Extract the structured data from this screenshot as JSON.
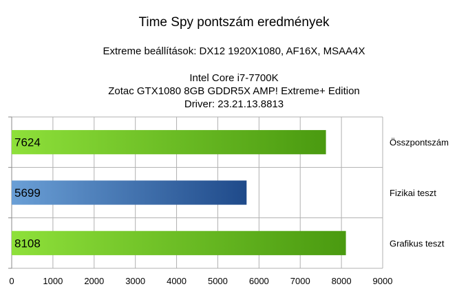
{
  "chart_data": {
    "type": "bar",
    "orientation": "horizontal",
    "title": "Time Spy pontszám eredmények",
    "subtitle": "Extreme beállítások: DX12 1920X1080, AF16X, MSAA4X",
    "subtitle_lines": [
      "Intel Core i7-7700K",
      "Zotac GTX1080 8GB GDDR5X AMP! Extreme+ Edition",
      "Driver: 23.21.13.8813"
    ],
    "categories": [
      "Összpontszám",
      "Fizikai teszt",
      "Grafikus teszt"
    ],
    "values": [
      7624,
      5699,
      8108
    ],
    "value_labels": [
      "7624",
      "5699",
      "8108"
    ],
    "xlim": [
      0,
      9000
    ],
    "x_ticks": [
      "0",
      "1000",
      "2000",
      "3000",
      "4000",
      "5000",
      "6000",
      "7000",
      "8000",
      "9000"
    ],
    "grid": true,
    "legend": "right",
    "colors": {
      "green_light": "#8ee03a",
      "green_dark": "#4a9a10",
      "blue_light": "#6a9fd6",
      "blue_dark": "#1f4a8a",
      "grid": "#b0b0b0",
      "axis": "#8a8a8a"
    },
    "bar_colors": [
      "green",
      "blue",
      "green"
    ]
  }
}
